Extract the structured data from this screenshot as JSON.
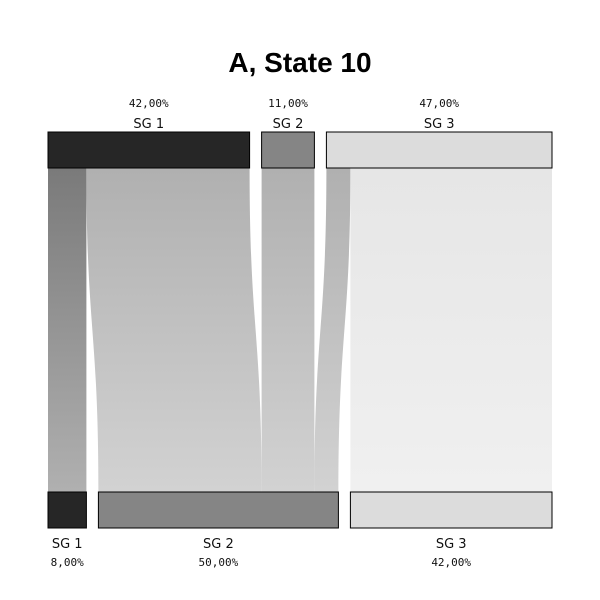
{
  "chart_data": {
    "type": "sankey",
    "title": "A, State 10",
    "top_nodes": [
      {
        "label": "SG 1",
        "percent_label": "42,00%",
        "value": 42,
        "color": "#262626"
      },
      {
        "label": "SG 2",
        "percent_label": "11,00%",
        "value": 11,
        "color": "#858585"
      },
      {
        "label": "SG 3",
        "percent_label": "47,00%",
        "value": 47,
        "color": "#dcdcdc"
      }
    ],
    "bottom_nodes": [
      {
        "label": "SG 1",
        "percent_label": "8,00%",
        "value": 8,
        "color": "#262626"
      },
      {
        "label": "SG 2",
        "percent_label": "50,00%",
        "value": 50,
        "color": "#858585"
      },
      {
        "label": "SG 3",
        "percent_label": "42,00%",
        "value": 42,
        "color": "#dcdcdc"
      }
    ],
    "flows": [
      {
        "from": "SG 1",
        "to": "SG 1",
        "value": 8,
        "color_top": "#7a7a7a",
        "color_bottom": "#b0b0b0"
      },
      {
        "from": "SG 1",
        "to": "SG 2",
        "value": 34,
        "color_top": "#b0b0b0",
        "color_bottom": "#d2d2d2"
      },
      {
        "from": "SG 2",
        "to": "SG 2",
        "value": 11,
        "color_top": "#b0b0b0",
        "color_bottom": "#d2d2d2"
      },
      {
        "from": "SG 3",
        "to": "SG 2",
        "value": 5,
        "color_top": "#b0b0b0",
        "color_bottom": "#d2d2d2"
      },
      {
        "from": "SG 3",
        "to": "SG 3",
        "value": 42,
        "color_top": "#e6e6e6",
        "color_bottom": "#f0f0f0"
      }
    ]
  }
}
